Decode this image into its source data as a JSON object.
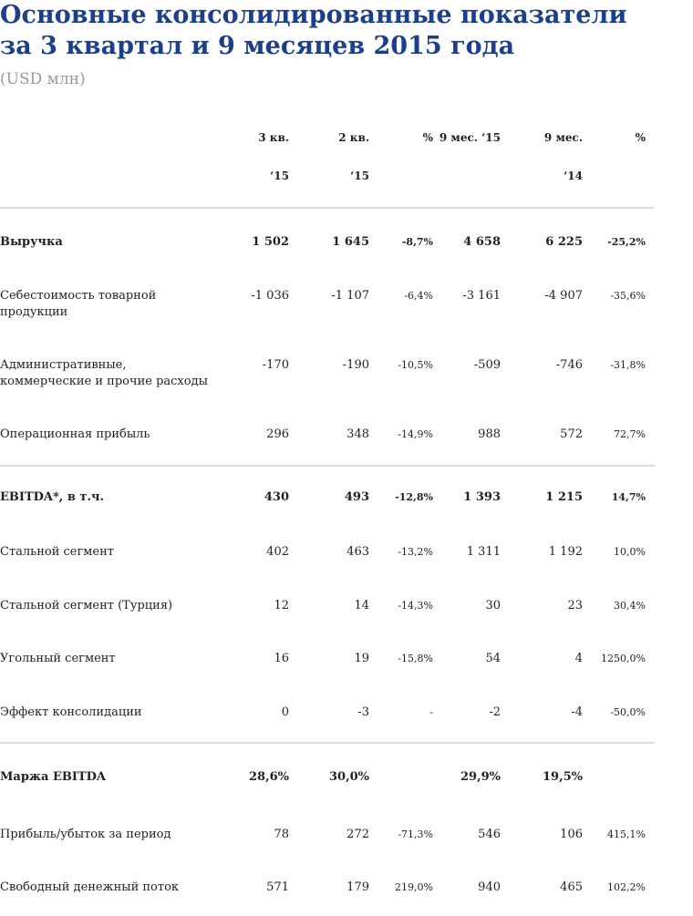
{
  "title_line1": "Основные консолидированные показатели",
  "title_line2": "за 3 квартал и 9 месяцев 2015 года",
  "subtitle": "(USD млн)",
  "columns": [
    {
      "top": "3 кв.",
      "bottom": "‘15"
    },
    {
      "top": "2 кв.",
      "bottom": "‘15"
    },
    {
      "top": "%",
      "bottom": ""
    },
    {
      "top": "9 мес. ‘15",
      "bottom": ""
    },
    {
      "top": "9 мес.",
      "bottom": "‘14"
    },
    {
      "top": "%",
      "bottom": ""
    }
  ],
  "rows": [
    {
      "label": "Выручка",
      "bold": true,
      "values": [
        "1 502",
        "1 645",
        "-8,7%",
        "4 658",
        "6 225",
        "-25,2%"
      ]
    },
    {
      "label": "Себестоимость товарной продукции",
      "bold": false,
      "values": [
        "-1 036",
        "-1 107",
        "-6,4%",
        "-3 161",
        "-4 907",
        "-35,6%"
      ]
    },
    {
      "label": "Административные, коммерческие и прочие расходы",
      "bold": false,
      "values": [
        "-170",
        "-190",
        "-10,5%",
        "-509",
        "-746",
        "-31,8%"
      ]
    },
    {
      "label": "Операционная прибыль",
      "bold": false,
      "values": [
        "296",
        "348",
        "-14,9%",
        "988",
        "572",
        "72,7%"
      ]
    },
    {
      "label": "EBITDA*, в т.ч.",
      "bold": true,
      "values": [
        "430",
        "493",
        "-12,8%",
        "1 393",
        "1 215",
        "14,7%"
      ]
    },
    {
      "label": "Стальной сегмент",
      "bold": false,
      "values": [
        "402",
        "463",
        "-13,2%",
        "1 311",
        "1 192",
        "10,0%"
      ]
    },
    {
      "label": "Стальной сегмент (Турция)",
      "bold": false,
      "values": [
        "12",
        "14",
        "-14,3%",
        "30",
        "23",
        "30,4%"
      ]
    },
    {
      "label": "Угольный сегмент",
      "bold": false,
      "values": [
        "16",
        "19",
        "-15,8%",
        "54",
        "4",
        "1250,0%"
      ]
    },
    {
      "label": "Эффект консолидации",
      "bold": false,
      "values": [
        "0",
        "-3",
        "-",
        "-2",
        "-4",
        "-50,0%"
      ]
    },
    {
      "label": "Маржа EBITDA",
      "bold": true,
      "values": [
        "28,6%",
        "30,0%",
        "",
        "29,9%",
        "19,5%",
        ""
      ]
    },
    {
      "label": "Прибыль/убыток за период",
      "bold": false,
      "values": [
        "78",
        "272",
        "-71,3%",
        "546",
        "106",
        "415,1%"
      ]
    },
    {
      "label": "Свободный денежный поток",
      "bold": false,
      "values": [
        "571",
        "179",
        "219,0%",
        "940",
        "465",
        "102,2%"
      ]
    }
  ]
}
